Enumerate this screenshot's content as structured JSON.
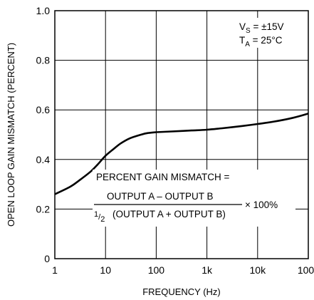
{
  "chart_data": {
    "type": "line",
    "title": "",
    "xlabel": "FREQUENCY (Hz)",
    "ylabel": "OPEN LOOP GAIN MISMATCH (PERCENT)",
    "x_scale": "log",
    "xlim": [
      1,
      100000
    ],
    "ylim": [
      0,
      1.0
    ],
    "x_ticks": [
      1,
      10,
      100,
      1000,
      10000,
      100000
    ],
    "x_tick_labels": [
      "1",
      "10",
      "100",
      "1k",
      "10k",
      "100k"
    ],
    "y_ticks": [
      0,
      0.2,
      0.4,
      0.6,
      0.8,
      1.0
    ],
    "y_tick_labels": [
      "0",
      "0.2",
      "0.4",
      "0.6",
      "0.8",
      "1.0"
    ],
    "grid": true,
    "series": [
      {
        "x": [
          1,
          2,
          3,
          5,
          7,
          10,
          15,
          20,
          30,
          50,
          70,
          100,
          200,
          500,
          1000,
          2000,
          5000,
          10000,
          20000,
          50000,
          100000
        ],
        "y": [
          0.26,
          0.29,
          0.315,
          0.35,
          0.38,
          0.415,
          0.445,
          0.465,
          0.485,
          0.5,
          0.507,
          0.51,
          0.513,
          0.517,
          0.52,
          0.526,
          0.535,
          0.543,
          0.552,
          0.568,
          0.585
        ]
      }
    ],
    "annotations": {
      "conditions": {
        "vs_main": "V",
        "vs_sub": "S",
        "vs_value": " = ±15V",
        "ta_main": "T",
        "ta_sub": "A",
        "ta_value": " = 25°C"
      },
      "formula": {
        "line1": "PERCENT GAIN MISMATCH =",
        "numerator": "OUTPUT A – OUTPUT B",
        "half_num": "1",
        "half_den": "2",
        "denominator": "(OUTPUT A + OUTPUT B)",
        "multiplier": "× 100%"
      }
    }
  }
}
